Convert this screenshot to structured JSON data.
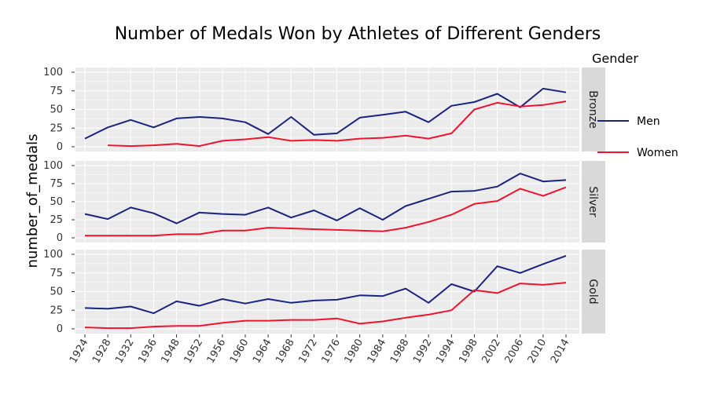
{
  "chart_data": {
    "type": "line",
    "title": "Number of Medals Won by Athletes of Different Genders",
    "ylabel": "number_of_medals",
    "xlabel": "",
    "categories": [
      "1924",
      "1928",
      "1932",
      "1936",
      "1948",
      "1952",
      "1956",
      "1960",
      "1964",
      "1968",
      "1972",
      "1976",
      "1980",
      "1984",
      "1988",
      "1992",
      "1994",
      "1998",
      "2002",
      "2006",
      "2010",
      "2014"
    ],
    "ylim": [
      0,
      100
    ],
    "yticks": [
      0,
      25,
      50,
      75,
      100
    ],
    "legend": {
      "title": "Gender",
      "placement": "right"
    },
    "series_colors": {
      "Men": "#1a237e",
      "Women": "#f0132d"
    },
    "panels": [
      {
        "label": "Bronze",
        "series": [
          {
            "name": "Men",
            "values": [
              11,
              26,
              36,
              26,
              38,
              40,
              38,
              33,
              17,
              40,
              16,
              18,
              39,
              43,
              47,
              33,
              55,
              60,
              71,
              53,
              78,
              73
            ]
          },
          {
            "name": "Women",
            "values": [
              null,
              2,
              1,
              2,
              4,
              1,
              8,
              10,
              13,
              8,
              9,
              8,
              11,
              12,
              15,
              11,
              18,
              50,
              59,
              54,
              56,
              61
            ]
          }
        ]
      },
      {
        "label": "Silver",
        "series": [
          {
            "name": "Men",
            "values": [
              33,
              26,
              42,
              34,
              20,
              35,
              33,
              32,
              42,
              28,
              38,
              24,
              41,
              25,
              44,
              54,
              64,
              65,
              71,
              89,
              78,
              80
            ]
          },
          {
            "name": "Women",
            "values": [
              3,
              3,
              3,
              3,
              5,
              5,
              10,
              10,
              14,
              13,
              12,
              11,
              10,
              9,
              14,
              22,
              32,
              47,
              51,
              68,
              58,
              70
            ]
          }
        ]
      },
      {
        "label": "Gold",
        "series": [
          {
            "name": "Men",
            "values": [
              28,
              27,
              30,
              21,
              37,
              31,
              40,
              34,
              40,
              35,
              38,
              39,
              45,
              44,
              54,
              35,
              60,
              50,
              84,
              75,
              87,
              98
            ]
          },
          {
            "name": "Women",
            "values": [
              2,
              1,
              1,
              3,
              4,
              4,
              8,
              11,
              11,
              12,
              12,
              14,
              7,
              10,
              15,
              19,
              25,
              52,
              48,
              61,
              59,
              62
            ]
          }
        ]
      }
    ]
  },
  "colors": {
    "panel_bg": "#ebebeb",
    "grid": "#ffffff",
    "strip_bg": "#d9d9d9"
  }
}
